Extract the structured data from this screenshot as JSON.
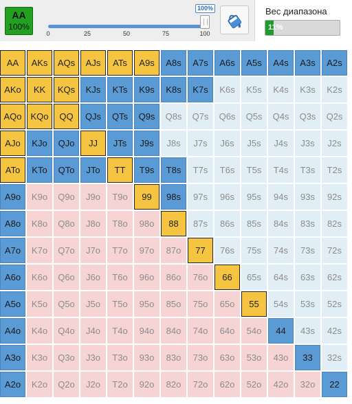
{
  "selected_hand": {
    "hand": "AA",
    "percent": "100%"
  },
  "slider": {
    "value_label": "100%",
    "value": 100,
    "min": 0,
    "max": 100,
    "ticks": [
      "0",
      "25",
      "50",
      "75",
      "100"
    ]
  },
  "paint_tool": {
    "icon": "paint-bucket-icon"
  },
  "range_weight": {
    "label": "Вес диапазона",
    "value_text": "11%",
    "value": 11
  },
  "colors": {
    "raise": "#f5c542",
    "call": "#5b9bd5",
    "fold_suited": "#e1eef5",
    "fold_offsuit": "#f7d4d4",
    "weight_fill": "#1f9a2e",
    "selected": "#22a022"
  },
  "matrix": [
    [
      [
        "AA",
        "raise"
      ],
      [
        "AKs",
        "raise"
      ],
      [
        "AQs",
        "raise"
      ],
      [
        "AJs",
        "raise"
      ],
      [
        "ATs",
        "raise"
      ],
      [
        "A9s",
        "raise"
      ],
      [
        "A8s",
        "call"
      ],
      [
        "A7s",
        "call"
      ],
      [
        "A6s",
        "call"
      ],
      [
        "A5s",
        "call"
      ],
      [
        "A4s",
        "call"
      ],
      [
        "A3s",
        "call"
      ],
      [
        "A2s",
        "call"
      ]
    ],
    [
      [
        "AKo",
        "raise"
      ],
      [
        "KK",
        "raise"
      ],
      [
        "KQs",
        "raise"
      ],
      [
        "KJs",
        "call"
      ],
      [
        "KTs",
        "call"
      ],
      [
        "K9s",
        "call"
      ],
      [
        "K8s",
        "call"
      ],
      [
        "K7s",
        "call"
      ],
      [
        "K6s",
        "fold"
      ],
      [
        "K5s",
        "fold"
      ],
      [
        "K4s",
        "fold"
      ],
      [
        "K3s",
        "fold"
      ],
      [
        "K2s",
        "fold"
      ]
    ],
    [
      [
        "AQo",
        "raise"
      ],
      [
        "KQo",
        "raise"
      ],
      [
        "QQ",
        "raise"
      ],
      [
        "QJs",
        "call"
      ],
      [
        "QTs",
        "call"
      ],
      [
        "Q9s",
        "call"
      ],
      [
        "Q8s",
        "fold"
      ],
      [
        "Q7s",
        "fold"
      ],
      [
        "Q6s",
        "fold"
      ],
      [
        "Q5s",
        "fold"
      ],
      [
        "Q4s",
        "fold"
      ],
      [
        "Q3s",
        "fold"
      ],
      [
        "Q2s",
        "fold"
      ]
    ],
    [
      [
        "AJo",
        "raise"
      ],
      [
        "KJo",
        "call"
      ],
      [
        "QJo",
        "call"
      ],
      [
        "JJ",
        "raise"
      ],
      [
        "JTs",
        "call"
      ],
      [
        "J9s",
        "call"
      ],
      [
        "J8s",
        "fold"
      ],
      [
        "J7s",
        "fold"
      ],
      [
        "J6s",
        "fold"
      ],
      [
        "J5s",
        "fold"
      ],
      [
        "J4s",
        "fold"
      ],
      [
        "J3s",
        "fold"
      ],
      [
        "J2s",
        "fold"
      ]
    ],
    [
      [
        "ATo",
        "raise"
      ],
      [
        "KTo",
        "call"
      ],
      [
        "QTo",
        "call"
      ],
      [
        "JTo",
        "call"
      ],
      [
        "TT",
        "raise"
      ],
      [
        "T9s",
        "call"
      ],
      [
        "T8s",
        "call"
      ],
      [
        "T7s",
        "fold"
      ],
      [
        "T6s",
        "fold"
      ],
      [
        "T5s",
        "fold"
      ],
      [
        "T4s",
        "fold"
      ],
      [
        "T3s",
        "fold"
      ],
      [
        "T2s",
        "fold"
      ]
    ],
    [
      [
        "A9o",
        "call"
      ],
      [
        "K9o",
        "fold"
      ],
      [
        "Q9o",
        "fold"
      ],
      [
        "J9o",
        "fold"
      ],
      [
        "T9o",
        "fold"
      ],
      [
        "99",
        "raise"
      ],
      [
        "98s",
        "call"
      ],
      [
        "97s",
        "fold"
      ],
      [
        "96s",
        "fold"
      ],
      [
        "95s",
        "fold"
      ],
      [
        "94s",
        "fold"
      ],
      [
        "93s",
        "fold"
      ],
      [
        "92s",
        "fold"
      ]
    ],
    [
      [
        "A8o",
        "call"
      ],
      [
        "K8o",
        "fold"
      ],
      [
        "Q8o",
        "fold"
      ],
      [
        "J8o",
        "fold"
      ],
      [
        "T8o",
        "fold"
      ],
      [
        "98o",
        "fold"
      ],
      [
        "88",
        "raise"
      ],
      [
        "87s",
        "fold"
      ],
      [
        "86s",
        "fold"
      ],
      [
        "85s",
        "fold"
      ],
      [
        "84s",
        "fold"
      ],
      [
        "83s",
        "fold"
      ],
      [
        "82s",
        "fold"
      ]
    ],
    [
      [
        "A7o",
        "call"
      ],
      [
        "K7o",
        "fold"
      ],
      [
        "Q7o",
        "fold"
      ],
      [
        "J7o",
        "fold"
      ],
      [
        "T7o",
        "fold"
      ],
      [
        "97o",
        "fold"
      ],
      [
        "87o",
        "fold"
      ],
      [
        "77",
        "raise"
      ],
      [
        "76s",
        "fold"
      ],
      [
        "75s",
        "fold"
      ],
      [
        "74s",
        "fold"
      ],
      [
        "73s",
        "fold"
      ],
      [
        "72s",
        "fold"
      ]
    ],
    [
      [
        "A6o",
        "call"
      ],
      [
        "K6o",
        "fold"
      ],
      [
        "Q6o",
        "fold"
      ],
      [
        "J6o",
        "fold"
      ],
      [
        "T6o",
        "fold"
      ],
      [
        "96o",
        "fold"
      ],
      [
        "86o",
        "fold"
      ],
      [
        "76o",
        "fold"
      ],
      [
        "66",
        "raise"
      ],
      [
        "65s",
        "fold"
      ],
      [
        "64s",
        "fold"
      ],
      [
        "63s",
        "fold"
      ],
      [
        "62s",
        "fold"
      ]
    ],
    [
      [
        "A5o",
        "call"
      ],
      [
        "K5o",
        "fold"
      ],
      [
        "Q5o",
        "fold"
      ],
      [
        "J5o",
        "fold"
      ],
      [
        "T5o",
        "fold"
      ],
      [
        "95o",
        "fold"
      ],
      [
        "85o",
        "fold"
      ],
      [
        "75o",
        "fold"
      ],
      [
        "65o",
        "fold"
      ],
      [
        "55",
        "raise"
      ],
      [
        "54s",
        "fold"
      ],
      [
        "53s",
        "fold"
      ],
      [
        "52s",
        "fold"
      ]
    ],
    [
      [
        "A4o",
        "call"
      ],
      [
        "K4o",
        "fold"
      ],
      [
        "Q4o",
        "fold"
      ],
      [
        "J4o",
        "fold"
      ],
      [
        "T4o",
        "fold"
      ],
      [
        "94o",
        "fold"
      ],
      [
        "84o",
        "fold"
      ],
      [
        "74o",
        "fold"
      ],
      [
        "64o",
        "fold"
      ],
      [
        "54o",
        "fold"
      ],
      [
        "44",
        "call"
      ],
      [
        "43s",
        "fold"
      ],
      [
        "42s",
        "fold"
      ]
    ],
    [
      [
        "A3o",
        "call"
      ],
      [
        "K3o",
        "fold"
      ],
      [
        "Q3o",
        "fold"
      ],
      [
        "J3o",
        "fold"
      ],
      [
        "T3o",
        "fold"
      ],
      [
        "93o",
        "fold"
      ],
      [
        "83o",
        "fold"
      ],
      [
        "73o",
        "fold"
      ],
      [
        "63o",
        "fold"
      ],
      [
        "53o",
        "fold"
      ],
      [
        "43o",
        "fold"
      ],
      [
        "33",
        "call"
      ],
      [
        "32s",
        "fold"
      ]
    ],
    [
      [
        "A2o",
        "call"
      ],
      [
        "K2o",
        "fold"
      ],
      [
        "Q2o",
        "fold"
      ],
      [
        "J2o",
        "fold"
      ],
      [
        "T2o",
        "fold"
      ],
      [
        "92o",
        "fold"
      ],
      [
        "82o",
        "fold"
      ],
      [
        "72o",
        "fold"
      ],
      [
        "62o",
        "fold"
      ],
      [
        "52o",
        "fold"
      ],
      [
        "42o",
        "fold"
      ],
      [
        "32o",
        "fold"
      ],
      [
        "22",
        "call"
      ]
    ]
  ]
}
